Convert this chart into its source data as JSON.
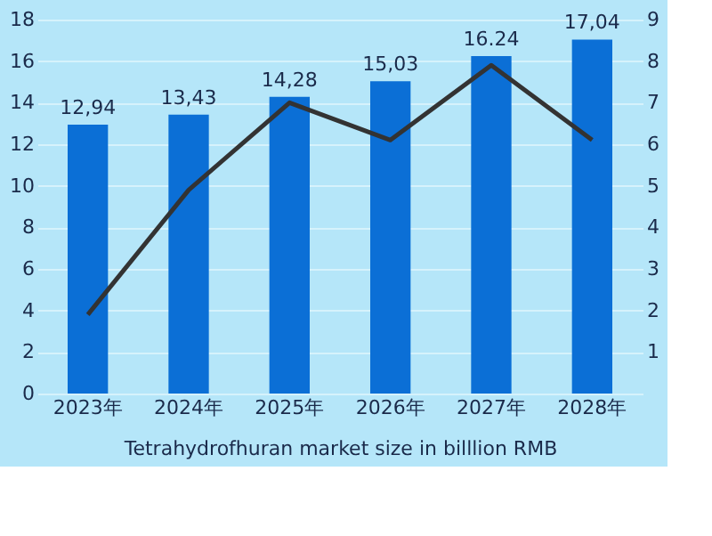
{
  "chart_data": {
    "type": "bar",
    "xlabel": "Tetrahydrofhuran market size in billlion RMB",
    "categories": [
      "2023年",
      "2024年",
      "2025年",
      "2026年",
      "2027年",
      "2028年"
    ],
    "series": [
      {
        "type": "bar",
        "color": "#0b6fd6",
        "values": [
          12.94,
          13.43,
          14.28,
          15.03,
          16.24,
          17.04
        ],
        "value_labels": [
          "12,94",
          "13,43",
          "14,28",
          "15,03",
          "16.24",
          "17,04"
        ]
      },
      {
        "type": "line",
        "axis": "y2",
        "color": "#333333",
        "values": [
          1.9,
          4.9,
          7.0,
          6.1,
          7.9,
          6.1
        ]
      }
    ],
    "ylim": [
      0,
      18
    ],
    "yticks": [
      0,
      2,
      4,
      6,
      8,
      10,
      12,
      14,
      16,
      18
    ],
    "y2lim": [
      0,
      9
    ],
    "y2ticks": [
      1,
      2,
      3,
      4,
      5,
      6,
      7,
      8,
      9
    ],
    "grid": "y",
    "marker": "none",
    "line_style": "solid"
  }
}
